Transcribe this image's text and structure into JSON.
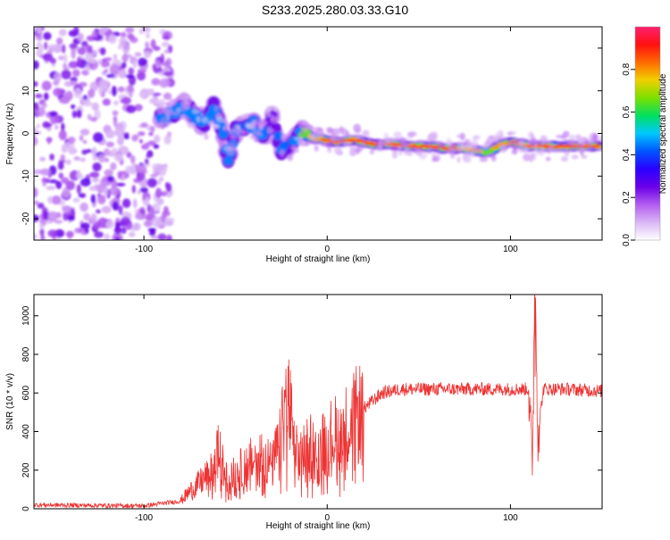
{
  "page_title": "S233.2025.280.03.33.G10",
  "colors": {
    "frame": "#000000",
    "snr_line": "#ee3333",
    "colorbar_stops": [
      "#ffffff",
      "#d9b6f5",
      "#b35cf0",
      "#6a00e8",
      "#2a00ff",
      "#0055ff",
      "#00c8ff",
      "#00e060",
      "#7be000",
      "#f0d000",
      "#ff6a00",
      "#ff1010",
      "#ff2070"
    ]
  },
  "chart_data": [
    {
      "type": "heatmap",
      "title": "S233.2025.280.03.33.G10",
      "xlabel": "Height of straight line (km)",
      "ylabel": "Frequency (Hz)",
      "xlim": [
        -160,
        150
      ],
      "ylim": [
        -25,
        25
      ],
      "xticks": [
        -100,
        0,
        100
      ],
      "yticks": [
        -20,
        -10,
        0,
        10,
        20
      ],
      "colorbar": {
        "label": "Normalized spectral amplitude",
        "range": [
          0,
          1
        ],
        "ticks": [
          0.0,
          0.2,
          0.4,
          0.6,
          0.8
        ]
      },
      "noise_region_x": [
        -160,
        -85
      ],
      "ridge": [
        {
          "x": -91,
          "y": 3.5,
          "a": 0.55
        },
        {
          "x": -85,
          "y": 4.5,
          "a": 0.45
        },
        {
          "x": -78,
          "y": 6.5,
          "a": 0.5
        },
        {
          "x": -72,
          "y": 4.0,
          "a": 0.55
        },
        {
          "x": -67,
          "y": 2.0,
          "a": 0.5
        },
        {
          "x": -62,
          "y": 6.5,
          "a": 0.45
        },
        {
          "x": -58,
          "y": 2.0,
          "a": 0.45
        },
        {
          "x": -54,
          "y": -6.5,
          "a": 0.5
        },
        {
          "x": -50,
          "y": 0.5,
          "a": 0.45
        },
        {
          "x": -45,
          "y": 1.5,
          "a": 0.4
        },
        {
          "x": -40,
          "y": 2.5,
          "a": 0.5
        },
        {
          "x": -35,
          "y": -1.0,
          "a": 0.45
        },
        {
          "x": -30,
          "y": 3.5,
          "a": 0.4
        },
        {
          "x": -25,
          "y": -4.0,
          "a": 0.45
        },
        {
          "x": -20,
          "y": -3.0,
          "a": 0.4
        },
        {
          "x": -15,
          "y": 0.5,
          "a": 0.6
        },
        {
          "x": -8,
          "y": -1.0,
          "a": 0.85
        },
        {
          "x": -2,
          "y": -1.5,
          "a": 0.9
        },
        {
          "x": 5,
          "y": -2.0,
          "a": 0.92
        },
        {
          "x": 15,
          "y": -1.5,
          "a": 0.95
        },
        {
          "x": 25,
          "y": -2.5,
          "a": 0.92
        },
        {
          "x": 35,
          "y": -2.5,
          "a": 0.95
        },
        {
          "x": 45,
          "y": -3.0,
          "a": 0.9
        },
        {
          "x": 55,
          "y": -3.0,
          "a": 0.92
        },
        {
          "x": 65,
          "y": -3.5,
          "a": 0.95
        },
        {
          "x": 75,
          "y": -3.5,
          "a": 0.85
        },
        {
          "x": 82,
          "y": -4.0,
          "a": 0.8
        },
        {
          "x": 88,
          "y": -4.5,
          "a": 0.75
        },
        {
          "x": 95,
          "y": -2.5,
          "a": 0.85
        },
        {
          "x": 102,
          "y": -2.0,
          "a": 0.9
        },
        {
          "x": 110,
          "y": -3.0,
          "a": 0.95
        },
        {
          "x": 120,
          "y": -3.0,
          "a": 0.95
        },
        {
          "x": 130,
          "y": -3.0,
          "a": 0.95
        },
        {
          "x": 140,
          "y": -3.0,
          "a": 0.95
        },
        {
          "x": 148,
          "y": -3.0,
          "a": 0.9
        }
      ]
    },
    {
      "type": "line",
      "title": "",
      "xlabel": "Height of straight line (km)",
      "ylabel": "SNR (10 * v/v)",
      "xlim": [
        -160,
        150
      ],
      "ylim": [
        0,
        1110
      ],
      "xticks": [
        -100,
        0,
        100
      ],
      "yticks": [
        0,
        200,
        400,
        600,
        800,
        1000
      ],
      "series": [
        {
          "name": "SNR",
          "profile": {
            "x": [
              -160,
              -100,
              -80,
              -75,
              -70,
              -62,
              -60,
              -55,
              -50,
              -45,
              -40,
              -35,
              -30,
              -25,
              -22,
              -20,
              -18,
              -15,
              -10,
              -5,
              0,
              10,
              20,
              30,
              40,
              60,
              80,
              100,
              108,
              110,
              111,
              112,
              113,
              114,
              115,
              118,
              130,
              150
            ],
            "y": [
              20,
              15,
              40,
              90,
              130,
              200,
              310,
              160,
              180,
              220,
              250,
              280,
              220,
              380,
              600,
              480,
              300,
              260,
              340,
              300,
              360,
              420,
              520,
              600,
              620,
              620,
              620,
              620,
              620,
              620,
              400,
              200,
              1110,
              900,
              400,
              620,
              620,
              610
            ]
          }
        }
      ]
    }
  ]
}
